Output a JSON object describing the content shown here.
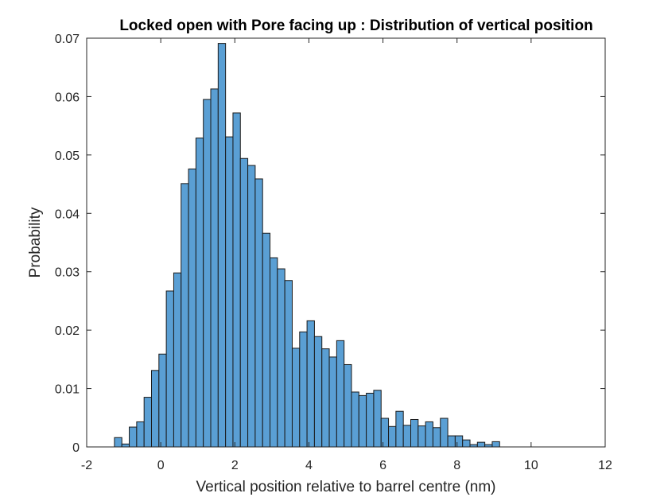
{
  "chart_data": {
    "type": "histogram",
    "title": "Locked open with Pore facing up : Distribution of vertical position",
    "xlabel": "Vertical position relative to barrel centre (nm)",
    "ylabel": "Probability",
    "xlim": [
      -2,
      12
    ],
    "ylim": [
      0,
      0.07
    ],
    "xticks": [
      "-2",
      "0",
      "2",
      "4",
      "6",
      "8",
      "10",
      "12"
    ],
    "yticks": [
      "0",
      "0.01",
      "0.02",
      "0.03",
      "0.04",
      "0.05",
      "0.06",
      "0.07"
    ],
    "bin_width": 0.2,
    "bin_start": -1.25,
    "color": "#5a9fd4",
    "values": [
      0.0016,
      0.0005,
      0.0034,
      0.0043,
      0.0085,
      0.0131,
      0.0159,
      0.0267,
      0.0298,
      0.0451,
      0.0476,
      0.0529,
      0.0595,
      0.0613,
      0.0691,
      0.0531,
      0.0572,
      0.0494,
      0.0482,
      0.0459,
      0.0366,
      0.0324,
      0.0305,
      0.0285,
      0.0169,
      0.0197,
      0.0216,
      0.0189,
      0.0168,
      0.0154,
      0.0182,
      0.0141,
      0.0094,
      0.0088,
      0.0092,
      0.0097,
      0.0049,
      0.0035,
      0.0061,
      0.0037,
      0.0047,
      0.0036,
      0.0043,
      0.0033,
      0.0049,
      0.0019,
      0.0019,
      0.0012,
      0.0004,
      0.0008,
      0.0004,
      0.0009
    ]
  }
}
